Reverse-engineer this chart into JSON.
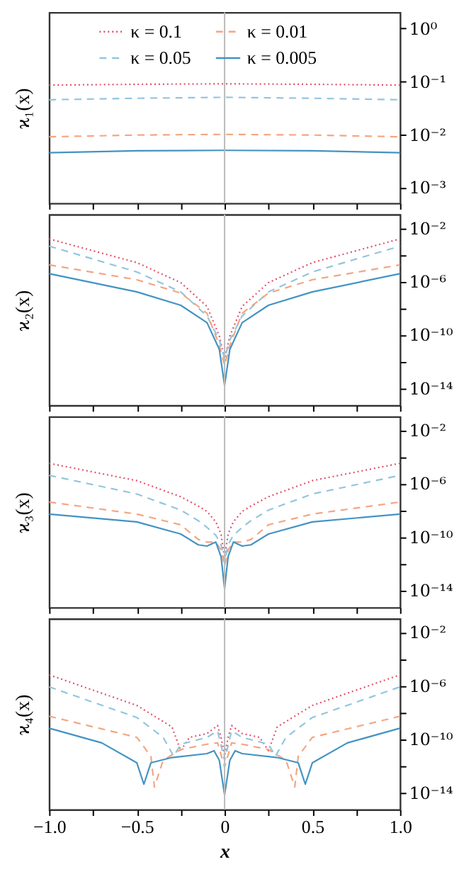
{
  "chart_data": [
    {
      "type": "line",
      "ylabel": "ϰ₁(x)",
      "log": true,
      "ylim": [
        0.0005,
        2
      ],
      "yticks": [
        {
          "value": 1,
          "label": "10⁰"
        },
        {
          "value": 0.1,
          "label": "10⁻¹"
        },
        {
          "value": 0.01,
          "label": "10⁻²"
        },
        {
          "value": 0.001,
          "label": "10⁻³"
        }
      ],
      "xlim": [
        -1,
        1
      ],
      "xticks": [
        -1,
        -0.75,
        -0.5,
        -0.25,
        0,
        0.25,
        0.5,
        0.75,
        1
      ],
      "tick_labels": "y",
      "legend": "top",
      "x": [
        -1,
        -0.5,
        0,
        0.5,
        1
      ],
      "ref_lines": [
        {
          "axis": "x",
          "value": 0,
          "color": "#bbbbbb"
        }
      ],
      "series": [
        {
          "name": "κ = 0.1",
          "color": "#e0506a",
          "line_style": "dotted",
          "values": [
            0.085,
            0.088,
            0.09,
            0.088,
            0.085
          ]
        },
        {
          "name": "κ = 0.05",
          "color": "#92c5de",
          "line_style": "dashed",
          "values": [
            0.045,
            0.048,
            0.05,
            0.048,
            0.045
          ]
        },
        {
          "name": "κ = 0.01",
          "color": "#f4a582",
          "line_style": "dashed",
          "values": [
            0.009,
            0.0097,
            0.01,
            0.0097,
            0.009
          ]
        },
        {
          "name": "κ = 0.005",
          "color": "#4393c3",
          "line_style": "solid",
          "values": [
            0.0045,
            0.0049,
            0.005,
            0.0049,
            0.0045
          ]
        }
      ]
    },
    {
      "type": "line",
      "ylabel": "ϰ₂(x)",
      "log": true,
      "ylim": [
        5e-16,
        0.1
      ],
      "yticks": [
        {
          "value": 0.01,
          "label": "10⁻²"
        },
        {
          "value": 0.0001,
          "label": null
        },
        {
          "value": 1e-06,
          "label": "10⁻⁶"
        },
        {
          "value": 1e-08,
          "label": null
        },
        {
          "value": 1e-10,
          "label": "10⁻¹⁰"
        },
        {
          "value": 1e-12,
          "label": null
        },
        {
          "value": 1e-14,
          "label": "10⁻¹⁴"
        }
      ],
      "xlim": [
        -1,
        1
      ],
      "xticks": [
        -1,
        -0.75,
        -0.5,
        -0.25,
        0,
        0.25,
        0.5,
        0.75,
        1
      ],
      "tick_labels": "y",
      "x": [
        -1,
        -0.5,
        -0.25,
        -0.1,
        -0.03,
        0,
        0.03,
        0.1,
        0.25,
        0.5,
        1
      ],
      "ref_lines": [
        {
          "axis": "x",
          "value": 0,
          "color": "#bbbbbb"
        }
      ],
      "series": [
        {
          "color": "#e0506a",
          "line_style": "dotted",
          "values": [
            0.0015,
            2.5e-05,
            7.9e-07,
            1.3e-08,
            7.9e-11,
            1.6e-12,
            7.9e-11,
            1.3e-08,
            7.9e-07,
            2.5e-05,
            0.0015
          ]
        },
        {
          "color": "#92c5de",
          "line_style": "dashed",
          "values": [
            0.00043,
            5e-06,
            1.6e-07,
            2.5e-09,
            4e-11,
            1.6e-12,
            4e-11,
            2.5e-09,
            1.6e-07,
            5e-06,
            0.00043
          ]
        },
        {
          "color": "#f4a582",
          "line_style": "dashed",
          "values": [
            1.7e-05,
            1.3e-06,
            1.3e-07,
            4e-09,
            1.6e-11,
            5e-13,
            1.6e-11,
            4e-09,
            1.3e-07,
            1.3e-06,
            1.7e-05
          ]
        },
        {
          "color": "#4393c3",
          "line_style": "solid",
          "values": [
            3.7e-06,
            1.6e-07,
            1.6e-08,
            7.9e-10,
            7.9e-12,
            1.6e-14,
            7.9e-12,
            7.9e-10,
            1.6e-08,
            1.6e-07,
            3.7e-06
          ]
        }
      ]
    },
    {
      "type": "line",
      "ylabel": "ϰ₃(x)",
      "log": true,
      "ylim": [
        5e-16,
        0.1
      ],
      "yticks": [
        {
          "value": 0.01,
          "label": "10⁻²"
        },
        {
          "value": 0.0001,
          "label": null
        },
        {
          "value": 1e-06,
          "label": "10⁻⁶"
        },
        {
          "value": 1e-08,
          "label": null
        },
        {
          "value": 1e-10,
          "label": "10⁻¹⁰"
        },
        {
          "value": 1e-12,
          "label": null
        },
        {
          "value": 1e-14,
          "label": "10⁻¹⁴"
        }
      ],
      "xlim": [
        -1,
        1
      ],
      "xticks": [
        -1,
        -0.75,
        -0.5,
        -0.25,
        0,
        0.25,
        0.5,
        0.75,
        1
      ],
      "tick_labels": "y",
      "x": [
        -1,
        -0.5,
        -0.25,
        -0.15,
        -0.1,
        -0.05,
        -0.02,
        0,
        0.02,
        0.05,
        0.1,
        0.15,
        0.25,
        0.5,
        1
      ],
      "ref_lines": [
        {
          "axis": "x",
          "value": 0,
          "color": "#bbbbbb"
        }
      ],
      "series": [
        {
          "color": "#e0506a",
          "line_style": "dotted",
          "values": [
            3.2e-05,
            1.6e-06,
            1e-07,
            2e-08,
            7.9e-09,
            1.3e-09,
            1.6e-10,
            2.5e-12,
            1.6e-10,
            1.3e-09,
            7.9e-09,
            2e-08,
            1e-07,
            1.6e-06,
            3.2e-05
          ]
        },
        {
          "color": "#92c5de",
          "line_style": "dashed",
          "values": [
            4e-06,
            1.6e-07,
            1e-08,
            1.6e-09,
            5e-10,
            1.3e-10,
            2.5e-11,
            1.3e-12,
            2.5e-11,
            1.3e-10,
            5e-10,
            1.6e-09,
            1e-08,
            1.6e-07,
            4e-06
          ]
        },
        {
          "color": "#f4a582",
          "line_style": "dashed",
          "values": [
            4e-08,
            5e-09,
            7.9e-10,
            6.3e-11,
            4e-11,
            4e-11,
            1e-11,
            6.3e-13,
            1e-11,
            4e-11,
            4e-11,
            6.3e-11,
            7.9e-10,
            5e-09,
            4e-08
          ]
        },
        {
          "color": "#4393c3",
          "line_style": "solid",
          "values": [
            5e-09,
            1.3e-09,
            1.6e-10,
            2.5e-11,
            2e-11,
            4e-11,
            3.2e-12,
            1.3e-14,
            3.2e-12,
            4e-11,
            2e-11,
            2.5e-11,
            1.6e-10,
            1.3e-09,
            5e-09
          ]
        }
      ]
    },
    {
      "type": "line",
      "ylabel": "ϰ₄(x)",
      "xlabel": "x",
      "log": true,
      "ylim": [
        5e-16,
        0.1
      ],
      "yticks": [
        {
          "value": 0.01,
          "label": "10⁻²"
        },
        {
          "value": 0.0001,
          "label": null
        },
        {
          "value": 1e-06,
          "label": "10⁻⁶"
        },
        {
          "value": 1e-08,
          "label": null
        },
        {
          "value": 1e-10,
          "label": "10⁻¹⁰"
        },
        {
          "value": 1e-12,
          "label": null
        },
        {
          "value": 1e-14,
          "label": "10⁻¹⁴"
        }
      ],
      "xlim": [
        -1,
        1
      ],
      "xticks": [
        {
          "value": -1,
          "label": "−1.0"
        },
        {
          "value": -0.75,
          "label": null
        },
        {
          "value": -0.5,
          "label": "−0.5"
        },
        {
          "value": -0.25,
          "label": null
        },
        {
          "value": 0,
          "label": "0"
        },
        {
          "value": 0.25,
          "label": null
        },
        {
          "value": 0.5,
          "label": "0.5"
        },
        {
          "value": 0.75,
          "label": null
        },
        {
          "value": 1,
          "label": "1.0"
        }
      ],
      "ref_lines": [
        {
          "axis": "x",
          "value": 0,
          "color": "#bbbbbb"
        }
      ],
      "series": [
        {
          "color": "#e0506a",
          "line_style": "dotted",
          "x": [
            -1,
            -0.5,
            -0.3,
            -0.25,
            -0.2,
            -0.1,
            -0.04,
            -0.02,
            0,
            0.02,
            0.04,
            0.1,
            0.2,
            0.25,
            0.3,
            0.5,
            1
          ],
          "values": [
            6.3e-06,
            3.2e-08,
            7.9e-10,
            1.3e-11,
            1.3e-10,
            2.5e-10,
            1e-09,
            1.3e-10,
            5e-12,
            1.3e-10,
            1e-09,
            2.5e-10,
            1.3e-10,
            1.3e-11,
            7.9e-10,
            3.2e-08,
            6.3e-06
          ]
        },
        {
          "color": "#92c5de",
          "line_style": "dashed",
          "x": [
            -1,
            -0.5,
            -0.35,
            -0.29,
            -0.25,
            -0.1,
            -0.04,
            0,
            0.04,
            0.1,
            0.25,
            0.29,
            0.35,
            0.5,
            1
          ],
          "values": [
            7.9e-07,
            4e-09,
            1.3e-10,
            5e-12,
            4e-11,
            1.3e-10,
            4e-10,
            2.5e-12,
            4e-10,
            1.3e-10,
            4e-11,
            5e-12,
            1.3e-10,
            4e-09,
            7.9e-07
          ]
        },
        {
          "color": "#f4a582",
          "line_style": "dashed",
          "x": [
            -1,
            -0.5,
            -0.42,
            -0.4,
            -0.35,
            -0.25,
            -0.1,
            -0.04,
            0,
            0.04,
            0.1,
            0.25,
            0.35,
            0.4,
            0.42,
            0.5,
            1
          ],
          "values": [
            5e-09,
            1.3e-10,
            5e-12,
            2.5e-14,
            2.5e-12,
            1.6e-11,
            4e-11,
            5e-11,
            7.9e-13,
            5e-11,
            4e-11,
            1.6e-11,
            2.5e-12,
            2.5e-14,
            5e-12,
            1.3e-10,
            5e-09
          ]
        },
        {
          "color": "#4393c3",
          "line_style": "solid",
          "x": [
            -1,
            -0.7,
            -0.5,
            -0.46,
            -0.42,
            -0.3,
            -0.1,
            -0.06,
            -0.03,
            0,
            0.03,
            0.06,
            0.1,
            0.3,
            0.42,
            0.46,
            0.5,
            0.7,
            1
          ],
          "values": [
            6.3e-10,
            5e-11,
            1.6e-12,
            4e-14,
            1.6e-12,
            4e-12,
            7.9e-12,
            1.3e-11,
            2.5e-12,
            6.3e-15,
            2.5e-12,
            1.3e-11,
            7.9e-12,
            4e-12,
            1.6e-12,
            4e-14,
            1.6e-12,
            5e-11,
            6.3e-10
          ]
        }
      ]
    }
  ]
}
